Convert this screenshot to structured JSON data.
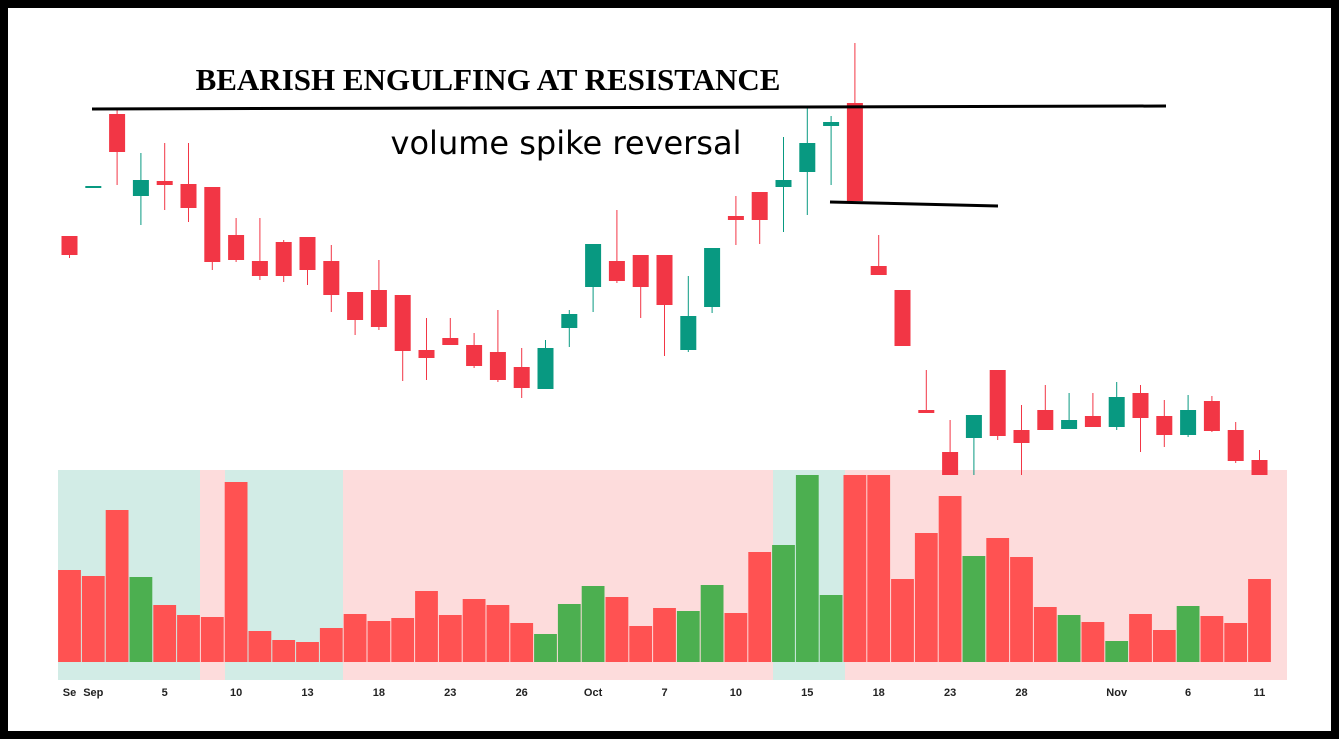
{
  "chart_data": {
    "type": "candlestick",
    "title": "BEARISH ENGULFING AT RESISTANCE",
    "subtitle": "volume spike reversal",
    "categories": [
      "Se",
      "Sep",
      null,
      null,
      "5",
      null,
      null,
      "10",
      null,
      null,
      "13",
      null,
      null,
      "18",
      null,
      null,
      "23",
      null,
      null,
      "26",
      null,
      null,
      "Oct",
      null,
      null,
      "7",
      null,
      null,
      "10",
      null,
      null,
      "15",
      null,
      null,
      "18",
      null,
      null,
      "23",
      null,
      null,
      "28",
      null,
      null,
      null,
      "Nov",
      null,
      null,
      "6",
      null,
      null,
      "11"
    ],
    "open": [
      244,
      292,
      366,
      284,
      299,
      296,
      293,
      245,
      219,
      238,
      243,
      219,
      188,
      190,
      185,
      130,
      142,
      135,
      128,
      113,
      91,
      152,
      193,
      219,
      225,
      225,
      130,
      173,
      264,
      288,
      293,
      308,
      354,
      377,
      214,
      190,
      70,
      28,
      42,
      110,
      50,
      70,
      51,
      64,
      53,
      87,
      64,
      45,
      79,
      50,
      20
    ],
    "high": [
      244,
      294,
      372,
      327,
      337,
      337,
      293,
      262,
      262,
      240,
      243,
      235,
      188,
      220,
      185,
      162,
      162,
      147,
      170,
      132,
      140,
      170,
      236,
      270,
      225,
      225,
      204,
      232,
      284,
      288,
      343,
      374,
      364,
      437,
      245,
      190,
      110,
      60,
      65,
      110,
      75,
      95,
      87,
      87,
      98,
      95,
      80,
      85,
      84,
      58,
      30
    ],
    "low": [
      222,
      292,
      295,
      255,
      270,
      258,
      210,
      218,
      200,
      198,
      195,
      168,
      145,
      150,
      99,
      100,
      135,
      112,
      98,
      82,
      91,
      133,
      168,
      197,
      162,
      124,
      128,
      167,
      235,
      236,
      248,
      265,
      295,
      279,
      205,
      134,
      67,
      5,
      5,
      40,
      5,
      50,
      51,
      53,
      50,
      28,
      33,
      43,
      48,
      17,
      5
    ],
    "close": [
      225,
      294,
      328,
      300,
      295,
      272,
      218,
      220,
      204,
      204,
      210,
      185,
      160,
      153,
      129,
      122,
      135,
      114,
      100,
      92,
      132,
      166,
      236,
      199,
      193,
      175,
      164,
      232,
      260,
      260,
      300,
      337,
      358,
      279,
      205,
      134,
      67,
      5,
      65,
      44,
      37,
      50,
      60,
      53,
      83,
      62,
      45,
      70,
      49,
      19,
      5
    ],
    "volume": [
      92,
      86,
      152,
      85,
      57,
      47,
      45,
      180,
      31,
      22,
      20,
      34,
      48,
      41,
      44,
      71,
      47,
      63,
      57,
      39,
      28,
      58,
      76,
      65,
      36,
      54,
      51,
      77,
      49,
      110,
      117,
      187,
      67,
      187,
      187,
      83,
      129,
      166,
      106,
      124,
      105,
      55,
      47,
      40,
      21,
      48,
      32,
      56,
      46,
      39,
      83
    ],
    "volume_colors": [
      "#ff5252",
      "#ff5252",
      "#ff5252",
      "#4caf50",
      "#ff5252",
      "#ff5252",
      "#ff5252",
      "#ff5252",
      "#ff5252",
      "#ff5252",
      "#ff5252",
      "#ff5252",
      "#ff5252",
      "#ff5252",
      "#ff5252",
      "#ff5252",
      "#ff5252",
      "#ff5252",
      "#ff5252",
      "#ff5252",
      "#4caf50",
      "#4caf50",
      "#4caf50",
      "#ff5252",
      "#ff5252",
      "#ff5252",
      "#4caf50",
      "#4caf50",
      "#ff5252",
      "#ff5252",
      "#4caf50",
      "#4caf50",
      "#4caf50",
      "#ff5252",
      "#ff5252",
      "#ff5252",
      "#ff5252",
      "#ff5252",
      "#4caf50",
      "#ff5252",
      "#ff5252",
      "#ff5252",
      "#4caf50",
      "#ff5252",
      "#4caf50",
      "#ff5252",
      "#ff5252",
      "#4caf50",
      "#ff5252",
      "#ff5252",
      "#ff5252"
    ],
    "up_color": "#089981",
    "down_color": "#f23645",
    "ylim": [
      0,
      440
    ],
    "volume_ylim": [
      0,
      187
    ]
  }
}
